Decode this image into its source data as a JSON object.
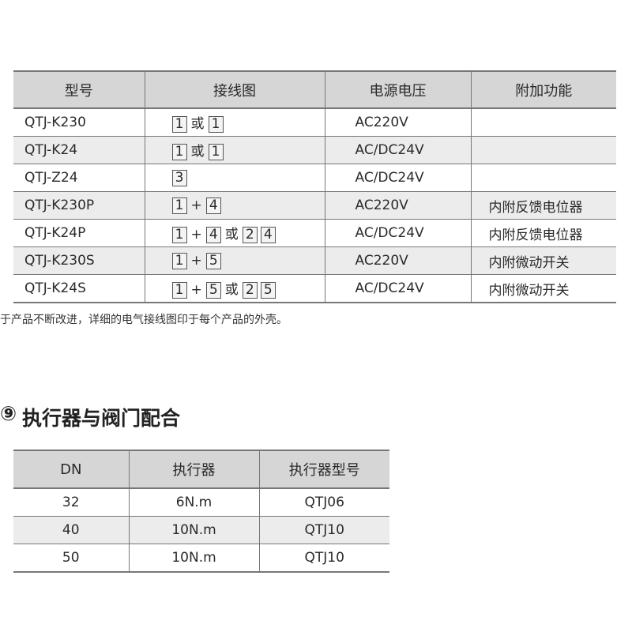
{
  "table1": {
    "headers": [
      "型号",
      "接线图",
      "电源电压",
      "附加功能"
    ],
    "rows": [
      {
        "model": "QTJ-K230",
        "wiring": [
          [
            "box",
            "1"
          ],
          [
            "text",
            "或"
          ],
          [
            "box",
            "1"
          ]
        ],
        "voltage": "AC220V",
        "extra": ""
      },
      {
        "model": "QTJ-K24",
        "wiring": [
          [
            "box",
            "1"
          ],
          [
            "text",
            "或"
          ],
          [
            "box",
            "1"
          ]
        ],
        "voltage": "AC/DC24V",
        "extra": ""
      },
      {
        "model": "QTJ-Z24",
        "wiring": [
          [
            "box",
            "3"
          ]
        ],
        "voltage": "AC/DC24V",
        "extra": ""
      },
      {
        "model": "QTJ-K230P",
        "wiring": [
          [
            "box",
            "1"
          ],
          [
            "text",
            "+"
          ],
          [
            "box",
            "4"
          ]
        ],
        "voltage": "AC220V",
        "extra": "内附反馈电位器"
      },
      {
        "model": "QTJ-K24P",
        "wiring": [
          [
            "box",
            "1"
          ],
          [
            "text",
            "+"
          ],
          [
            "box",
            "4"
          ],
          [
            "text",
            "或"
          ],
          [
            "box",
            "2"
          ],
          [
            "box",
            "4"
          ]
        ],
        "voltage": "AC/DC24V",
        "extra": "内附反馈电位器"
      },
      {
        "model": "QTJ-K230S",
        "wiring": [
          [
            "box",
            "1"
          ],
          [
            "text",
            "+"
          ],
          [
            "box",
            "5"
          ]
        ],
        "voltage": "AC220V",
        "extra": "内附微动开关"
      },
      {
        "model": "QTJ-K24S",
        "wiring": [
          [
            "box",
            "1"
          ],
          [
            "text",
            "+"
          ],
          [
            "box",
            "5"
          ],
          [
            "text",
            "或"
          ],
          [
            "box",
            "2"
          ],
          [
            "box",
            "5"
          ]
        ],
        "voltage": "AC/DC24V",
        "extra": "内附微动开关"
      }
    ]
  },
  "note": "于产品不断改进，详细的电气接线图印于每个产品的外壳。",
  "section2": {
    "icon": "section-number-icon",
    "title": "执行器与阀门配合"
  },
  "table2": {
    "headers": [
      "DN",
      "执行器",
      "执行器型号"
    ],
    "rows": [
      [
        "32",
        "6N.m",
        "QTJ06"
      ],
      [
        "40",
        "10N.m",
        "QTJ10"
      ],
      [
        "50",
        "10N.m",
        "QTJ10"
      ]
    ]
  }
}
